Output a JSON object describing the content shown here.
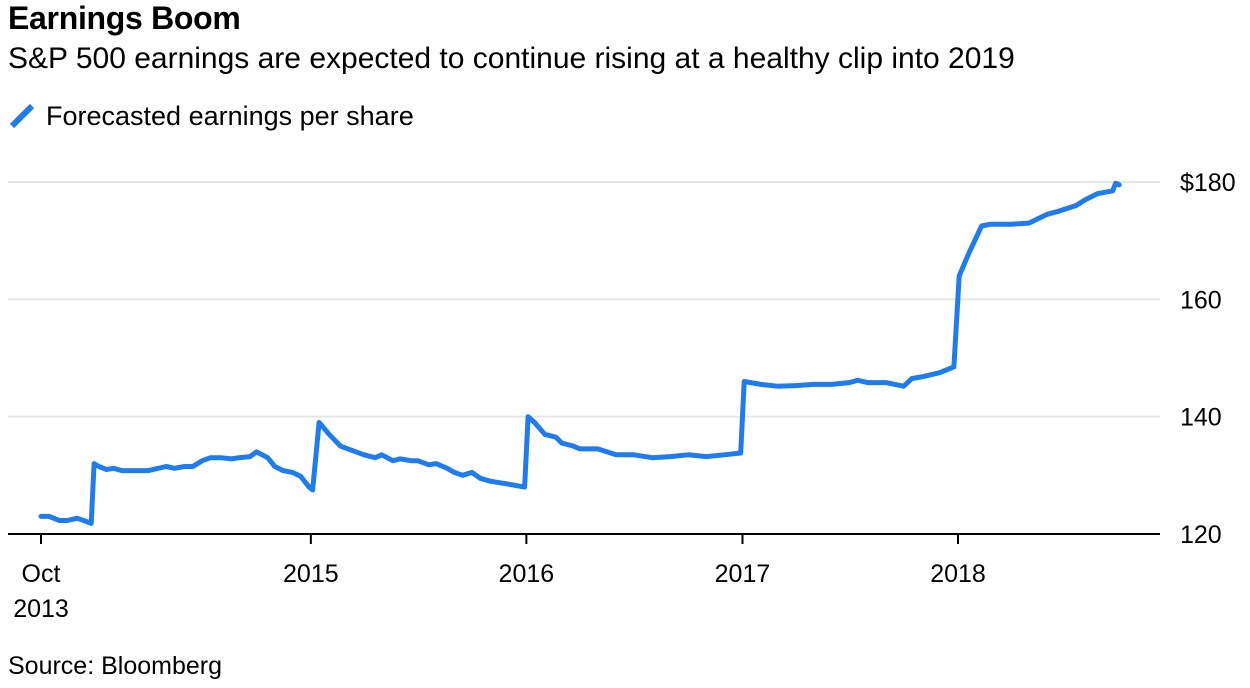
{
  "header": {
    "title": "Earnings Boom",
    "subtitle": "S&P 500 earnings are expected to continue rising at a healthy clip into 2019"
  },
  "footer": {
    "source": "Source: Bloomberg"
  },
  "colors": {
    "series": "#1f7bf0",
    "grid": "#e6e6e6",
    "axis": "#000000"
  },
  "chart_data": {
    "type": "line",
    "title": "Earnings Boom",
    "subtitle": "S&P 500 earnings are expected to continue rising at a healthy clip into 2019",
    "ylim": [
      120,
      180
    ],
    "yticks": [
      120,
      140,
      160,
      180
    ],
    "ytick_labels": [
      "120",
      "140",
      "160",
      "$180"
    ],
    "y_axis_side": "right",
    "xticks": [
      {
        "value": "2013-10-01",
        "label": "Oct",
        "label2": "2013"
      },
      {
        "value": "2015-01-01",
        "label": "2015",
        "label2": ""
      },
      {
        "value": "2016-01-01",
        "label": "2016",
        "label2": ""
      },
      {
        "value": "2017-01-01",
        "label": "2017",
        "label2": ""
      },
      {
        "value": "2018-01-01",
        "label": "2018",
        "label2": ""
      }
    ],
    "grid": true,
    "legend": "top-left",
    "series": [
      {
        "name": "Forecasted earnings per share",
        "x": [
          "2013-10-01",
          "2013-10-15",
          "2013-11-01",
          "2013-11-15",
          "2013-12-01",
          "2013-12-15",
          "2013-12-25",
          "2013-12-30",
          "2014-01-07",
          "2014-01-20",
          "2014-02-01",
          "2014-02-15",
          "2014-03-01",
          "2014-04-01",
          "2014-05-01",
          "2014-05-15",
          "2014-06-01",
          "2014-06-15",
          "2014-07-01",
          "2014-07-15",
          "2014-08-01",
          "2014-08-20",
          "2014-09-01",
          "2014-09-20",
          "2014-10-01",
          "2014-10-20",
          "2014-11-01",
          "2014-11-15",
          "2014-12-01",
          "2014-12-15",
          "2014-12-29",
          "2015-01-04",
          "2015-01-15",
          "2015-02-01",
          "2015-02-20",
          "2015-03-05",
          "2015-04-01",
          "2015-04-20",
          "2015-05-01",
          "2015-05-20",
          "2015-06-01",
          "2015-06-20",
          "2015-07-01",
          "2015-07-20",
          "2015-08-01",
          "2015-08-20",
          "2015-09-01",
          "2015-09-15",
          "2015-10-01",
          "2015-10-15",
          "2015-11-01",
          "2015-12-01",
          "2015-12-29",
          "2016-01-04",
          "2016-01-15",
          "2016-02-01",
          "2016-02-20",
          "2016-03-01",
          "2016-03-20",
          "2016-04-01",
          "2016-05-01",
          "2016-06-01",
          "2016-07-01",
          "2016-08-01",
          "2016-09-01",
          "2016-10-01",
          "2016-11-01",
          "2016-12-01",
          "2016-12-29",
          "2017-01-04",
          "2017-02-01",
          "2017-03-01",
          "2017-04-01",
          "2017-05-01",
          "2017-06-01",
          "2017-07-01",
          "2017-07-15",
          "2017-08-01",
          "2017-09-01",
          "2017-10-01",
          "2017-10-15",
          "2017-11-01",
          "2017-12-01",
          "2017-12-25",
          "2018-01-03",
          "2018-01-20",
          "2018-02-10",
          "2018-02-25",
          "2018-04-01",
          "2018-05-01",
          "2018-06-01",
          "2018-06-20",
          "2018-07-20",
          "2018-08-05",
          "2018-08-25",
          "2018-09-20",
          "2018-09-25",
          "2018-10-01"
        ],
        "y": [
          123.0,
          123.0,
          122.3,
          122.3,
          122.7,
          122.2,
          121.8,
          132.0,
          131.5,
          131.0,
          131.2,
          130.8,
          130.8,
          130.8,
          131.5,
          131.2,
          131.5,
          131.5,
          132.5,
          133.0,
          133.0,
          132.8,
          133.0,
          133.2,
          134.0,
          133.0,
          131.5,
          130.8,
          130.5,
          129.8,
          128.0,
          127.5,
          139.0,
          137.0,
          135.0,
          134.5,
          133.5,
          133.0,
          133.5,
          132.5,
          132.8,
          132.5,
          132.5,
          131.8,
          132.0,
          131.2,
          130.5,
          130.0,
          130.5,
          129.5,
          129.0,
          128.5,
          128.0,
          140.0,
          139.0,
          137.0,
          136.5,
          135.5,
          135.0,
          134.5,
          134.5,
          133.5,
          133.5,
          133.0,
          133.2,
          133.5,
          133.2,
          133.5,
          133.8,
          146.0,
          145.5,
          145.2,
          145.3,
          145.5,
          145.5,
          145.8,
          146.2,
          145.8,
          145.8,
          145.2,
          146.5,
          146.8,
          147.5,
          148.5,
          164.0,
          168.0,
          172.5,
          172.8,
          172.8,
          173.0,
          174.5,
          175.0,
          176.0,
          177.0,
          178.0,
          178.5,
          179.8,
          179.5
        ]
      }
    ]
  }
}
